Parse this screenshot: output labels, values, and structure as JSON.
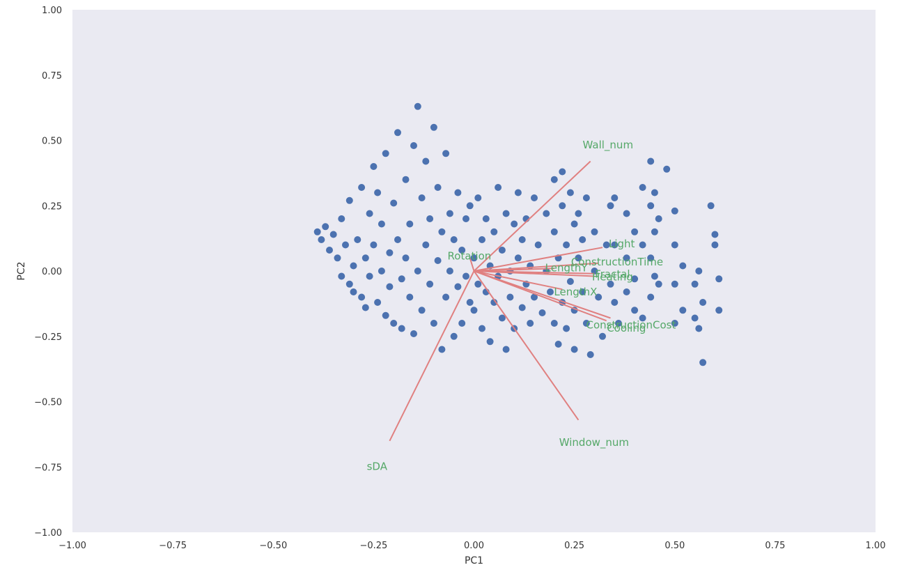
{
  "chart_data": {
    "type": "scatter",
    "title": "",
    "xlabel": "PC1",
    "ylabel": "PC2",
    "xlim": [
      -1.0,
      1.0
    ],
    "ylim": [
      -1.0,
      1.0
    ],
    "grid": false,
    "background_color": "#EAEAF2",
    "point_color": "#4C72B0",
    "loading_line_color": "#E08080",
    "loading_label_color": "#55A868",
    "x_ticks": [
      "−1.00",
      "−0.75",
      "−0.50",
      "−0.25",
      "0.00",
      "0.25",
      "0.50",
      "0.75",
      "1.00"
    ],
    "y_ticks": [
      "1.00",
      "0.75",
      "0.50",
      "0.25",
      "0.00",
      "−0.25",
      "−0.50",
      "−0.75",
      "−1.00"
    ],
    "x_tick_values": [
      -1.0,
      -0.75,
      -0.5,
      -0.25,
      0.0,
      0.25,
      0.5,
      0.75,
      1.0
    ],
    "y_tick_values": [
      1.0,
      0.75,
      0.5,
      0.25,
      0.0,
      -0.25,
      -0.5,
      -0.75,
      -1.0
    ],
    "loadings": [
      {
        "name": "Wall_num",
        "x": 0.29,
        "y": 0.42
      },
      {
        "name": "Light",
        "x": 0.32,
        "y": 0.09
      },
      {
        "name": "ConstructionTime",
        "x": 0.31,
        "y": 0.03
      },
      {
        "name": "LengthY",
        "x": 0.2,
        "y": 0.01
      },
      {
        "name": "Rotation",
        "x": -0.01,
        "y": 0.05
      },
      {
        "name": "Fractal",
        "x": 0.3,
        "y": -0.01
      },
      {
        "name": "Heating",
        "x": 0.3,
        "y": -0.02
      },
      {
        "name": "LengthX",
        "x": 0.22,
        "y": -0.07
      },
      {
        "name": "ConstructionCost",
        "x": 0.34,
        "y": -0.18
      },
      {
        "name": "Cooling",
        "x": 0.33,
        "y": -0.19
      },
      {
        "name": "Window_num",
        "x": 0.26,
        "y": -0.57
      },
      {
        "name": "sDA",
        "x": -0.21,
        "y": -0.65
      }
    ],
    "series": [
      {
        "points": [
          [
            -0.39,
            0.15
          ],
          [
            -0.38,
            0.12
          ],
          [
            -0.37,
            0.17
          ],
          [
            -0.36,
            0.08
          ],
          [
            -0.35,
            0.14
          ],
          [
            -0.34,
            0.05
          ],
          [
            -0.33,
            0.2
          ],
          [
            -0.33,
            -0.02
          ],
          [
            -0.32,
            0.1
          ],
          [
            -0.31,
            -0.05
          ],
          [
            -0.31,
            0.27
          ],
          [
            -0.3,
            0.02
          ],
          [
            -0.3,
            -0.08
          ],
          [
            -0.29,
            0.12
          ],
          [
            -0.28,
            -0.1
          ],
          [
            -0.28,
            0.32
          ],
          [
            -0.27,
            0.05
          ],
          [
            -0.27,
            -0.14
          ],
          [
            -0.26,
            0.22
          ],
          [
            -0.26,
            -0.02
          ],
          [
            -0.25,
            0.4
          ],
          [
            -0.25,
            0.1
          ],
          [
            -0.24,
            -0.12
          ],
          [
            -0.24,
            0.3
          ],
          [
            -0.23,
            0.0
          ],
          [
            -0.23,
            0.18
          ],
          [
            -0.22,
            -0.17
          ],
          [
            -0.22,
            0.45
          ],
          [
            -0.21,
            0.07
          ],
          [
            -0.21,
            -0.06
          ],
          [
            -0.2,
            0.26
          ],
          [
            -0.2,
            -0.2
          ],
          [
            -0.19,
            0.12
          ],
          [
            -0.19,
            0.53
          ],
          [
            -0.18,
            -0.03
          ],
          [
            -0.18,
            -0.22
          ],
          [
            -0.17,
            0.35
          ],
          [
            -0.17,
            0.05
          ],
          [
            -0.16,
            -0.1
          ],
          [
            -0.16,
            0.18
          ],
          [
            -0.15,
            0.48
          ],
          [
            -0.15,
            -0.24
          ],
          [
            -0.14,
            0.63
          ],
          [
            -0.14,
            0.0
          ],
          [
            -0.13,
            0.28
          ],
          [
            -0.13,
            -0.15
          ],
          [
            -0.12,
            0.42
          ],
          [
            -0.12,
            0.1
          ],
          [
            -0.11,
            -0.05
          ],
          [
            -0.11,
            0.2
          ],
          [
            -0.1,
            0.55
          ],
          [
            -0.1,
            -0.2
          ],
          [
            -0.09,
            0.32
          ],
          [
            -0.09,
            0.04
          ],
          [
            -0.08,
            -0.3
          ],
          [
            -0.08,
            0.15
          ],
          [
            -0.07,
            0.45
          ],
          [
            -0.07,
            -0.1
          ],
          [
            -0.06,
            0.22
          ],
          [
            -0.06,
            0.0
          ],
          [
            -0.05,
            -0.25
          ],
          [
            -0.05,
            0.12
          ],
          [
            -0.04,
            0.3
          ],
          [
            -0.04,
            -0.06
          ],
          [
            -0.03,
            0.08
          ],
          [
            -0.03,
            -0.2
          ],
          [
            -0.02,
            0.2
          ],
          [
            -0.02,
            -0.02
          ],
          [
            -0.01,
            -0.12
          ],
          [
            -0.01,
            0.25
          ],
          [
            0.0,
            0.05
          ],
          [
            0.0,
            -0.15
          ],
          [
            0.01,
            0.28
          ],
          [
            0.01,
            -0.05
          ],
          [
            0.02,
            0.12
          ],
          [
            0.02,
            -0.22
          ],
          [
            0.03,
            0.2
          ],
          [
            0.03,
            -0.08
          ],
          [
            0.04,
            0.02
          ],
          [
            0.04,
            -0.27
          ],
          [
            0.05,
            0.15
          ],
          [
            0.05,
            -0.12
          ],
          [
            0.06,
            0.32
          ],
          [
            0.06,
            -0.02
          ],
          [
            0.07,
            -0.18
          ],
          [
            0.07,
            0.08
          ],
          [
            0.08,
            0.22
          ],
          [
            0.08,
            -0.3
          ],
          [
            0.09,
            0.0
          ],
          [
            0.09,
            -0.1
          ],
          [
            0.1,
            0.18
          ],
          [
            0.1,
            -0.22
          ],
          [
            0.11,
            0.05
          ],
          [
            0.11,
            0.3
          ],
          [
            0.12,
            -0.14
          ],
          [
            0.12,
            0.12
          ],
          [
            0.13,
            -0.05
          ],
          [
            0.13,
            0.2
          ],
          [
            0.14,
            -0.2
          ],
          [
            0.14,
            0.02
          ],
          [
            0.15,
            0.28
          ],
          [
            0.15,
            -0.1
          ],
          [
            0.16,
            0.1
          ],
          [
            0.17,
            -0.16
          ],
          [
            0.18,
            0.22
          ],
          [
            0.18,
            0.0
          ],
          [
            0.19,
            -0.08
          ],
          [
            0.2,
            0.35
          ],
          [
            0.2,
            0.15
          ],
          [
            0.2,
            -0.2
          ],
          [
            0.21,
            0.05
          ],
          [
            0.21,
            -0.28
          ],
          [
            0.22,
            0.38
          ],
          [
            0.22,
            0.25
          ],
          [
            0.22,
            -0.12
          ],
          [
            0.23,
            0.1
          ],
          [
            0.23,
            -0.22
          ],
          [
            0.24,
            0.3
          ],
          [
            0.24,
            -0.04
          ],
          [
            0.25,
            0.18
          ],
          [
            0.25,
            -0.15
          ],
          [
            0.25,
            -0.3
          ],
          [
            0.26,
            0.05
          ],
          [
            0.26,
            0.22
          ],
          [
            0.27,
            -0.08
          ],
          [
            0.27,
            0.12
          ],
          [
            0.28,
            -0.2
          ],
          [
            0.28,
            0.28
          ],
          [
            0.29,
            -0.32
          ],
          [
            0.3,
            0.15
          ],
          [
            0.3,
            0.0
          ],
          [
            0.31,
            -0.1
          ],
          [
            0.32,
            -0.25
          ],
          [
            0.33,
            0.1
          ],
          [
            0.34,
            0.25
          ],
          [
            0.34,
            -0.05
          ],
          [
            0.35,
            0.28
          ],
          [
            0.35,
            0.1
          ],
          [
            0.35,
            -0.12
          ],
          [
            0.36,
            -0.2
          ],
          [
            0.38,
            0.22
          ],
          [
            0.38,
            0.05
          ],
          [
            0.38,
            -0.08
          ],
          [
            0.4,
            0.15
          ],
          [
            0.4,
            -0.03
          ],
          [
            0.4,
            -0.15
          ],
          [
            0.42,
            0.32
          ],
          [
            0.42,
            0.1
          ],
          [
            0.42,
            -0.18
          ],
          [
            0.44,
            0.42
          ],
          [
            0.44,
            0.25
          ],
          [
            0.44,
            0.05
          ],
          [
            0.44,
            -0.1
          ],
          [
            0.45,
            0.3
          ],
          [
            0.45,
            0.15
          ],
          [
            0.45,
            -0.02
          ],
          [
            0.46,
            0.2
          ],
          [
            0.46,
            -0.05
          ],
          [
            0.48,
            0.39
          ],
          [
            0.5,
            0.23
          ],
          [
            0.5,
            0.1
          ],
          [
            0.5,
            -0.05
          ],
          [
            0.5,
            -0.2
          ],
          [
            0.52,
            0.02
          ],
          [
            0.52,
            -0.15
          ],
          [
            0.55,
            -0.05
          ],
          [
            0.55,
            -0.18
          ],
          [
            0.56,
            0.0
          ],
          [
            0.56,
            -0.22
          ],
          [
            0.57,
            -0.35
          ],
          [
            0.57,
            -0.12
          ],
          [
            0.59,
            0.25
          ],
          [
            0.6,
            0.14
          ],
          [
            0.6,
            0.1
          ],
          [
            0.61,
            -0.03
          ],
          [
            0.61,
            -0.15
          ]
        ]
      }
    ]
  }
}
